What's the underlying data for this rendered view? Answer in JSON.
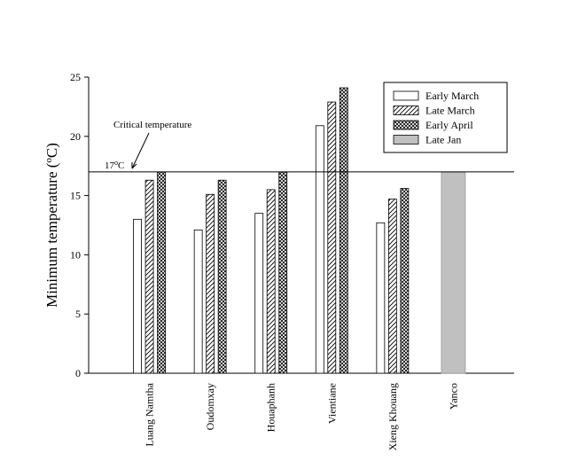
{
  "chart_data": {
    "type": "bar",
    "y_label": [
      "Minimum temperature (",
      "o",
      "C)"
    ],
    "categories": [
      "Luang Namtha",
      "Oudomxay",
      "Houaphanh",
      "Vientiane",
      "Xieng Khouang",
      "Yanco"
    ],
    "series": [
      {
        "name": "Early March",
        "color": "#ffffff",
        "fill_style": "solid",
        "values": [
          13.0,
          12.1,
          13.5,
          20.9,
          12.7,
          null
        ]
      },
      {
        "name": "Late March",
        "color": "#ffffff",
        "fill_style": "hatch",
        "values": [
          16.3,
          15.1,
          15.5,
          22.9,
          14.7,
          null
        ]
      },
      {
        "name": "Early April",
        "color": "#ffffff",
        "fill_style": "crosshatch",
        "values": [
          17.0,
          16.3,
          17.0,
          24.1,
          15.6,
          null
        ]
      },
      {
        "name": "Late Jan",
        "color": "#c0c0c0",
        "fill_style": "solid",
        "values": [
          null,
          null,
          null,
          null,
          null,
          17.0
        ]
      }
    ],
    "reference_line": 17,
    "reference_label": [
      "17",
      "o",
      "C"
    ],
    "annotation": "Critical temperature",
    "ylim": [
      0,
      25
    ],
    "yticks": [
      0,
      5,
      10,
      15,
      20,
      25
    ],
    "legend": "upper right"
  }
}
